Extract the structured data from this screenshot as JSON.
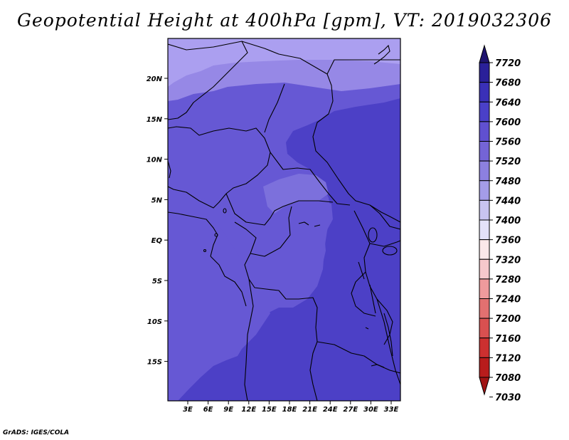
{
  "title": "Geopotential Height at 400hPa [gpm], VT: 2019032306",
  "footer": "GrADS: IGES/COLA",
  "map": {
    "lat_labels": [
      "20N",
      "15N",
      "10N",
      "5N",
      "EQ",
      "5S",
      "10S",
      "15S"
    ],
    "lon_labels": [
      "3E",
      "6E",
      "9E",
      "12E",
      "15E",
      "18E",
      "21E",
      "24E",
      "27E",
      "30E",
      "33E"
    ]
  },
  "colorbar": {
    "levels": [
      "7720",
      "7680",
      "7640",
      "7600",
      "7560",
      "7520",
      "7480",
      "7440",
      "7400",
      "7360",
      "7320",
      "7280",
      "7240",
      "7200",
      "7160",
      "7120",
      "7080",
      "7030"
    ],
    "colors": [
      "#1f1470",
      "#2a2099",
      "#3a30b8",
      "#4a40c8",
      "#6050d0",
      "#7464d6",
      "#8c80e0",
      "#a49ce8",
      "#c8c4f0",
      "#e4e2f8",
      "#fbe8ea",
      "#f6c8cc",
      "#ee9a9c",
      "#e27070",
      "#d85050",
      "#cc3030",
      "#b81c1c",
      "#a01414"
    ]
  },
  "colors": {
    "top_band": "#ab9ff0",
    "band_7520": "#9688e6",
    "band_7560": "#7c70dc",
    "base_7600": "#6658d4",
    "band_7640": "#4c40c6"
  }
}
